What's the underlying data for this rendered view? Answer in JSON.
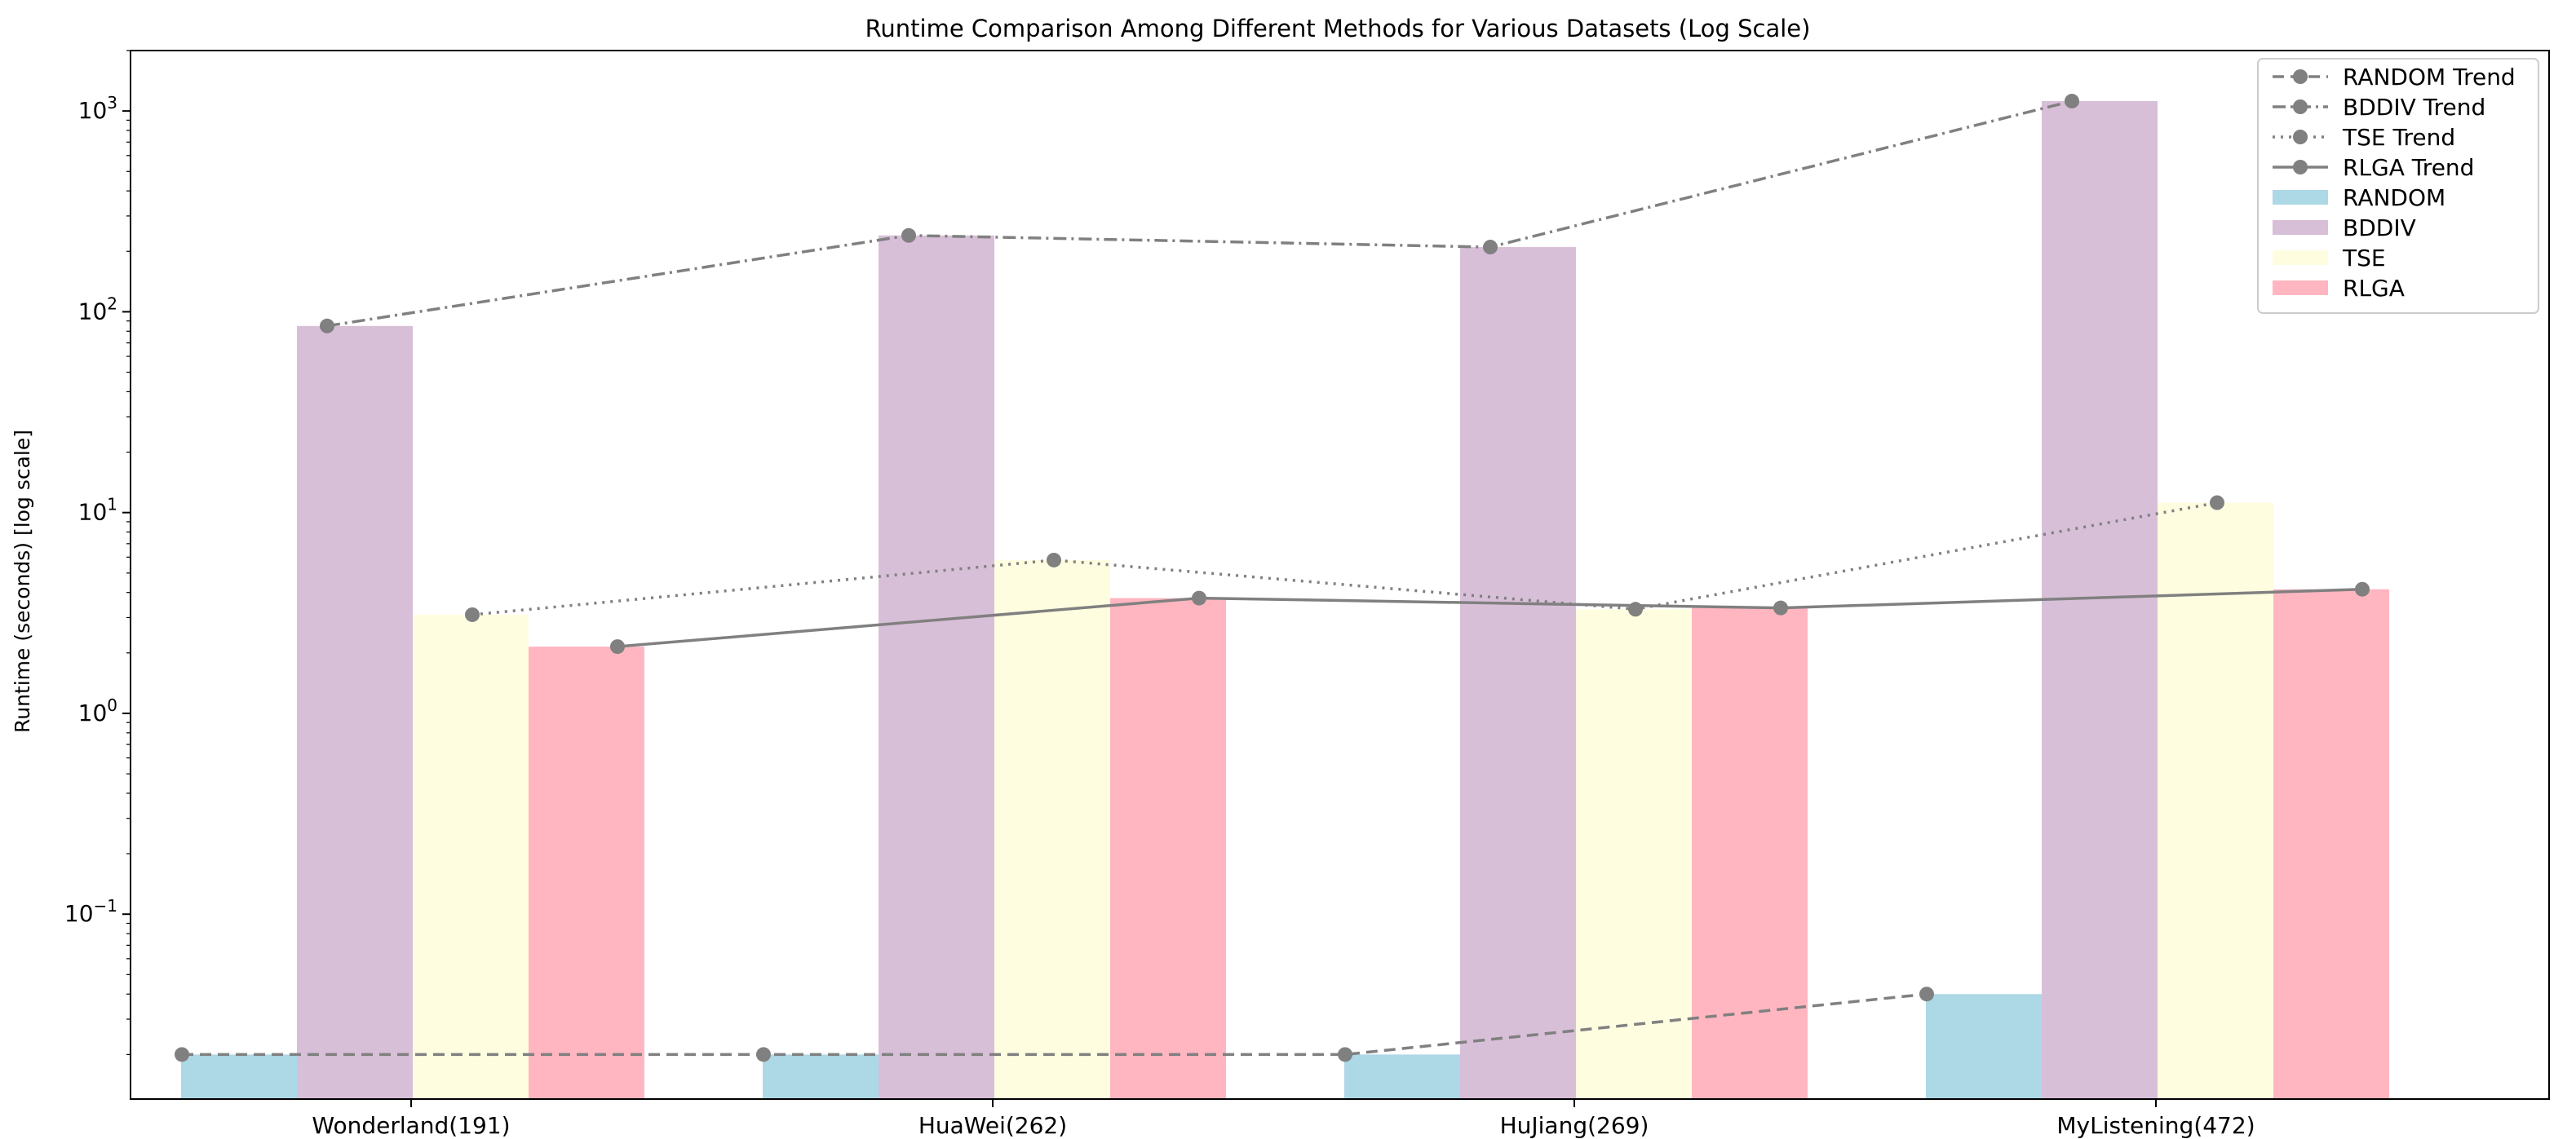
{
  "chart_data": {
    "type": "bar",
    "title": "Runtime Comparison Among Different Methods for Various Datasets (Log Scale)",
    "xlabel": "",
    "ylabel": "Runtime (seconds) [log scale]",
    "yscale": "log",
    "ylim": [
      0.012,
      2000
    ],
    "categories": [
      "Wonderland(191)",
      "HuaWei(262)",
      "HuJiang(269)",
      "MyListening(472)"
    ],
    "yticks": [
      {
        "value": 0.1,
        "base": "10",
        "exp": "−1"
      },
      {
        "value": 1,
        "base": "10",
        "exp": "0"
      },
      {
        "value": 10,
        "base": "10",
        "exp": "1"
      },
      {
        "value": 100,
        "base": "10",
        "exp": "2"
      },
      {
        "value": 1000,
        "base": "10",
        "exp": "3"
      }
    ],
    "series": [
      {
        "name": "RANDOM",
        "color": "#add8e6",
        "values": [
          0.02,
          0.02,
          0.02,
          0.04
        ]
      },
      {
        "name": "BDDIV",
        "color": "#d8bfd8",
        "values": [
          85,
          240,
          210,
          1120
        ]
      },
      {
        "name": "TSE",
        "color": "#fffde0",
        "values": [
          3.1,
          5.8,
          3.3,
          11.2
        ]
      },
      {
        "name": "RLGA",
        "color": "#ffb6c1",
        "values": [
          2.15,
          3.75,
          3.35,
          4.15
        ]
      }
    ],
    "trends": [
      {
        "name": "RANDOM Trend",
        "series": "RANDOM",
        "style": "dashed",
        "color": "#808080"
      },
      {
        "name": "BDDIV Trend",
        "series": "BDDIV",
        "style": "dashdot",
        "color": "#808080"
      },
      {
        "name": "TSE Trend",
        "series": "TSE",
        "style": "dotted",
        "color": "#808080"
      },
      {
        "name": "RLGA Trend",
        "series": "RLGA",
        "style": "solid",
        "color": "#808080"
      }
    ],
    "legend": {
      "position": "top-right",
      "entries": [
        "RANDOM Trend",
        "BDDIV Trend",
        "TSE Trend",
        "RLGA Trend",
        "RANDOM",
        "BDDIV",
        "TSE",
        "RLGA"
      ]
    }
  }
}
